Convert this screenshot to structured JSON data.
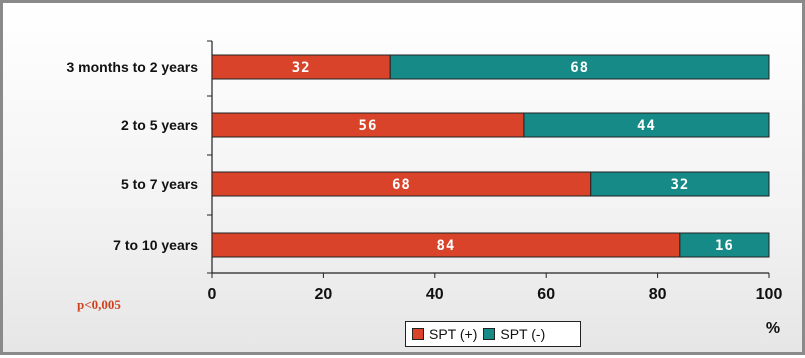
{
  "chart_data": {
    "type": "bar",
    "orientation": "horizontal",
    "stacked": true,
    "title": "",
    "xlabel": "%",
    "ylabel": "",
    "xlim": [
      0,
      100
    ],
    "x_ticks": [
      "0",
      "20",
      "40",
      "60",
      "80",
      "100"
    ],
    "categories": [
      "3 months to 2 years",
      "2 to 5 years",
      "5 to 7 years",
      "7 to 10 years"
    ],
    "series": [
      {
        "name": "SPT (+)",
        "color": "#d8432a",
        "values": [
          32,
          56,
          68,
          84
        ]
      },
      {
        "name": "SPT (-)",
        "color": "#168a86",
        "values": [
          68,
          44,
          32,
          16
        ]
      }
    ],
    "annotation": "p<0,005",
    "legend_position": "bottom",
    "grid": false
  }
}
